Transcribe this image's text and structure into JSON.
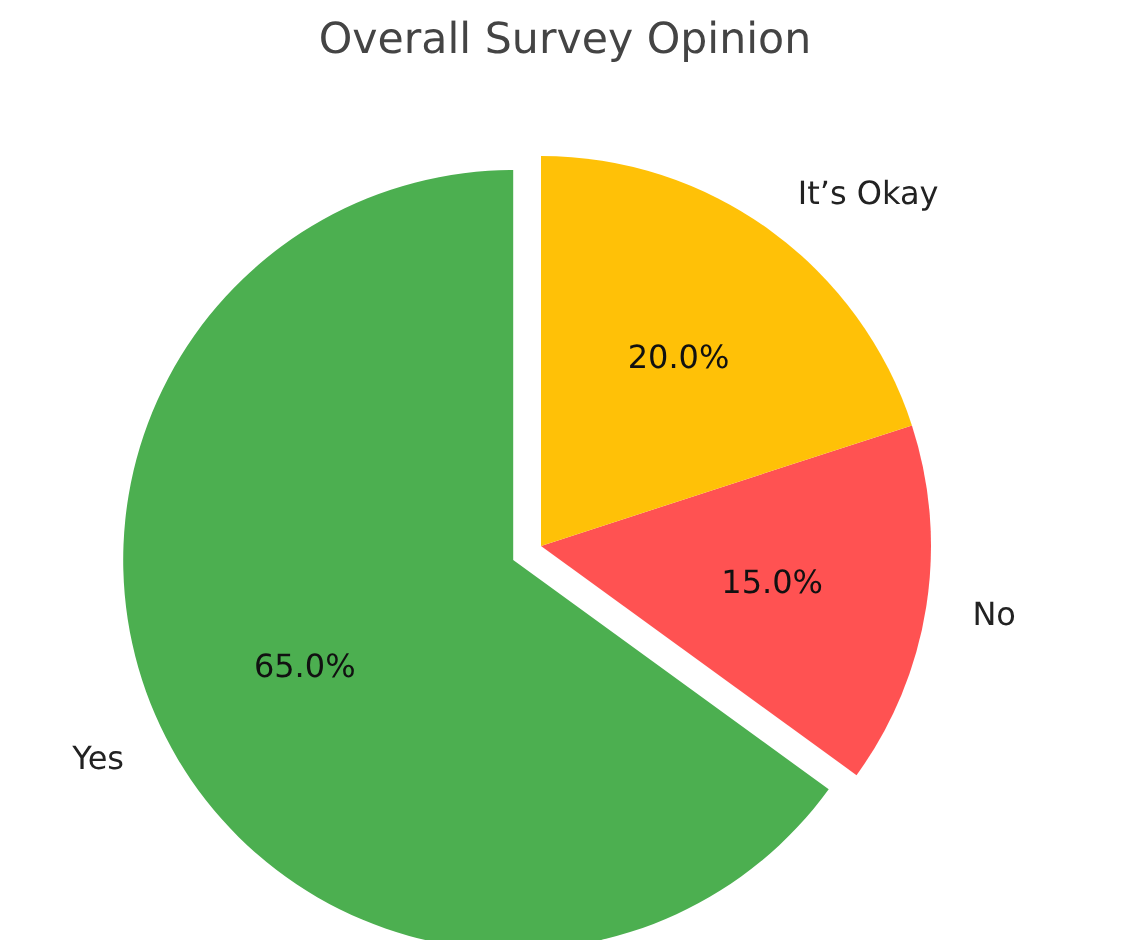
{
  "chart_data": {
    "type": "pie",
    "title": "Overall Survey Opinion",
    "categories": [
      "Yes",
      "No",
      "It’s Okay"
    ],
    "values": [
      65,
      15,
      20
    ],
    "colors": [
      "#4caf50",
      "#ff5252",
      "#ffc107"
    ],
    "value_labels": [
      "65.0%",
      "15.0%",
      "20.0%"
    ]
  }
}
